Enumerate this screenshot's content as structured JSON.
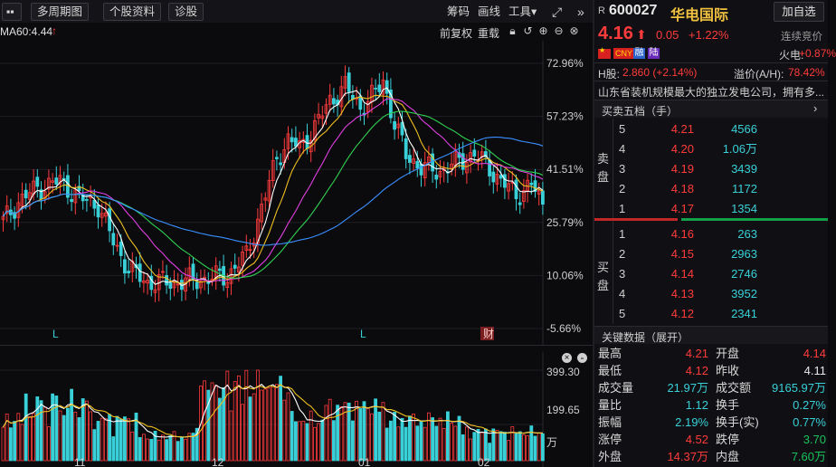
{
  "toolbar": {
    "menu_icon": "grid-icon",
    "period_label": "多周期图",
    "profile_label": "个股资料",
    "diagnose_label": "诊股",
    "chips_label": "筹码",
    "draw_label": "画线",
    "tools_label": "工具",
    "tools_arrow": "▾"
  },
  "indicator_row": {
    "ma60_text": "MA60:4.44",
    "adjust_label": "前复权",
    "redraw_label": "重载"
  },
  "kchart": {
    "y_labels": [
      "72.96%",
      "57.23%",
      "41.51%",
      "25.79%",
      "10.06%",
      "-5.66%"
    ],
    "markers": [
      "L",
      "L",
      "财"
    ]
  },
  "volchart": {
    "y_labels": [
      "399.30",
      "199.65",
      "万"
    ],
    "x_labels": [
      "11",
      "12",
      "01",
      "02"
    ]
  },
  "quote": {
    "r_tag": "R",
    "code": "600027",
    "name": "华电国际",
    "add_label": "加自选",
    "price": "4.16",
    "arrow": "⬆",
    "change": "0.05",
    "change_pct": "+1.22%",
    "auction_label": "连续竞价",
    "tags": [
      "CNY",
      "融",
      "陆"
    ],
    "sector_label": "火电:",
    "sector_pct": "+0.87%",
    "h_label": "H股:",
    "h_value": "2.860 (+2.14%)",
    "premium_label": "溢价(A/H):",
    "premium_value": "78.42%",
    "description": "山东省装机规模最大的独立发电公司，拥有多..."
  },
  "orderbook": {
    "title": "买卖五档（手）",
    "sell_label": [
      "卖",
      "盘"
    ],
    "buy_label": [
      "买",
      "盘"
    ],
    "asks": [
      {
        "level": "5",
        "price": "4.21",
        "volume": "4566"
      },
      {
        "level": "4",
        "price": "4.20",
        "volume": "1.06万"
      },
      {
        "level": "3",
        "price": "4.19",
        "volume": "3439"
      },
      {
        "level": "2",
        "price": "4.18",
        "volume": "1172"
      },
      {
        "level": "1",
        "price": "4.17",
        "volume": "1354"
      }
    ],
    "bids": [
      {
        "level": "1",
        "price": "4.16",
        "volume": "263"
      },
      {
        "level": "2",
        "price": "4.15",
        "volume": "2963"
      },
      {
        "level": "3",
        "price": "4.14",
        "volume": "2746"
      },
      {
        "level": "4",
        "price": "4.13",
        "volume": "3952"
      },
      {
        "level": "5",
        "price": "4.12",
        "volume": "2341"
      }
    ]
  },
  "key_data": {
    "title": "关键数据（展开）",
    "rows": [
      {
        "l1": "最高",
        "v1": "4.21",
        "c1": "red",
        "l2": "开盘",
        "v2": "4.14",
        "c2": "red"
      },
      {
        "l1": "最低",
        "v1": "4.12",
        "c1": "red",
        "l2": "昨收",
        "v2": "4.11",
        "c2": "white"
      },
      {
        "l1": "成交量",
        "v1": "21.97万",
        "c1": "cyan",
        "l2": "成交额",
        "v2": "9165.97万",
        "c2": "cyan"
      },
      {
        "l1": "量比",
        "v1": "1.12",
        "c1": "cyan",
        "l2": "换手",
        "v2": "0.27%",
        "c2": "cyan"
      },
      {
        "l1": "振幅",
        "v1": "2.19%",
        "c1": "cyan",
        "l2": "换手(实)",
        "v2": "0.77%",
        "c2": "cyan"
      },
      {
        "l1": "涨停",
        "v1": "4.52",
        "c1": "red",
        "l2": "跌停",
        "v2": "3.70",
        "c2": "green"
      },
      {
        "l1": "外盘",
        "v1": "14.37万",
        "c1": "red",
        "l2": "内盘",
        "v2": "7.60万",
        "c2": "green"
      }
    ]
  },
  "colors": {
    "up": "#ff3b3b",
    "down": "#19c25a",
    "bg": "#0b0b0e",
    "cyan": "#39d0d8"
  }
}
